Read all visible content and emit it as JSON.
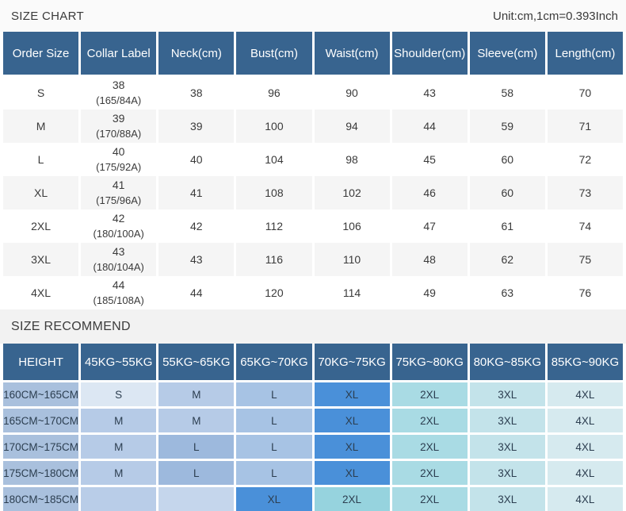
{
  "page": {
    "title": "SIZE CHART",
    "unit_note": "Unit:cm,1cm=0.393Inch",
    "recommend_title": "SIZE RECOMMEND"
  },
  "colors": {
    "header_bg": "#38648f",
    "accent_bright_blue": "#4a90d9",
    "row_alt_bg": "#f5f5f5",
    "height_col_bg": "#a9c0dd"
  },
  "size_chart": {
    "columns": [
      "Order Size",
      "Collar Label",
      "Neck(cm)",
      "Bust(cm)",
      "Waist(cm)",
      "Shoulder(cm)",
      "Sleeve(cm)",
      "Length(cm)"
    ],
    "rows": [
      {
        "order_size": "S",
        "collar_label": "38",
        "collar_sub": "(165/84A)",
        "neck": "38",
        "bust": "96",
        "waist": "90",
        "shoulder": "43",
        "sleeve": "58",
        "length": "70"
      },
      {
        "order_size": "M",
        "collar_label": "39",
        "collar_sub": "(170/88A)",
        "neck": "39",
        "bust": "100",
        "waist": "94",
        "shoulder": "44",
        "sleeve": "59",
        "length": "71"
      },
      {
        "order_size": "L",
        "collar_label": "40",
        "collar_sub": "(175/92A)",
        "neck": "40",
        "bust": "104",
        "waist": "98",
        "shoulder": "45",
        "sleeve": "60",
        "length": "72"
      },
      {
        "order_size": "XL",
        "collar_label": "41",
        "collar_sub": "(175/96A)",
        "neck": "41",
        "bust": "108",
        "waist": "102",
        "shoulder": "46",
        "sleeve": "60",
        "length": "73"
      },
      {
        "order_size": "2XL",
        "collar_label": "42",
        "collar_sub": "(180/100A)",
        "neck": "42",
        "bust": "112",
        "waist": "106",
        "shoulder": "47",
        "sleeve": "61",
        "length": "74"
      },
      {
        "order_size": "3XL",
        "collar_label": "43",
        "collar_sub": "(180/104A)",
        "neck": "43",
        "bust": "116",
        "waist": "110",
        "shoulder": "48",
        "sleeve": "62",
        "length": "75"
      },
      {
        "order_size": "4XL",
        "collar_label": "44",
        "collar_sub": "(185/108A)",
        "neck": "44",
        "bust": "120",
        "waist": "114",
        "shoulder": "49",
        "sleeve": "63",
        "length": "76"
      }
    ]
  },
  "size_recommend": {
    "columns": [
      "HEIGHT",
      "45KG~55KG",
      "55KG~65KG",
      "65KG~70KG",
      "70KG~75KG",
      "75KG~80KG",
      "80KG~85KG",
      "85KG~90KG"
    ],
    "rows": [
      {
        "height": "160CM~165CM",
        "cells": [
          {
            "label": "S",
            "bg": "#dce7f3"
          },
          {
            "label": "M",
            "bg": "#b6cbe7"
          },
          {
            "label": "L",
            "bg": "#a7c3e4"
          },
          {
            "label": "XL",
            "bg": "#4a90d9"
          },
          {
            "label": "2XL",
            "bg": "#a9dbe4"
          },
          {
            "label": "3XL",
            "bg": "#c3e3ea"
          },
          {
            "label": "4XL",
            "bg": "#d6eaef"
          }
        ]
      },
      {
        "height": "165CM~170CM",
        "cells": [
          {
            "label": "M",
            "bg": "#b6cbe7"
          },
          {
            "label": "M",
            "bg": "#b6cbe7"
          },
          {
            "label": "L",
            "bg": "#a7c3e4"
          },
          {
            "label": "XL",
            "bg": "#4a90d9"
          },
          {
            "label": "2XL",
            "bg": "#a9dbe4"
          },
          {
            "label": "3XL",
            "bg": "#c3e3ea"
          },
          {
            "label": "4XL",
            "bg": "#d6eaef"
          }
        ]
      },
      {
        "height": "170CM~175CM",
        "cells": [
          {
            "label": "M",
            "bg": "#b6cbe7"
          },
          {
            "label": "L",
            "bg": "#9db9dd"
          },
          {
            "label": "L",
            "bg": "#a7c3e4"
          },
          {
            "label": "XL",
            "bg": "#4a90d9"
          },
          {
            "label": "2XL",
            "bg": "#a9dbe4"
          },
          {
            "label": "3XL",
            "bg": "#c3e3ea"
          },
          {
            "label": "4XL",
            "bg": "#d6eaef"
          }
        ]
      },
      {
        "height": "175CM~180CM",
        "cells": [
          {
            "label": "M",
            "bg": "#b6cbe7"
          },
          {
            "label": "L",
            "bg": "#9db9dd"
          },
          {
            "label": "L",
            "bg": "#a7c3e4"
          },
          {
            "label": "XL",
            "bg": "#4a90d9"
          },
          {
            "label": "2XL",
            "bg": "#a9dbe4"
          },
          {
            "label": "3XL",
            "bg": "#c3e3ea"
          },
          {
            "label": "4XL",
            "bg": "#d6eaef"
          }
        ]
      },
      {
        "height": "180CM~185CM",
        "cells": [
          {
            "label": "",
            "bg": "#b9cde8"
          },
          {
            "label": "",
            "bg": "#c5d6ec"
          },
          {
            "label": "XL",
            "bg": "#4a90d9"
          },
          {
            "label": "2XL",
            "bg": "#96d3de"
          },
          {
            "label": "2XL",
            "bg": "#a9dbe4"
          },
          {
            "label": "3XL",
            "bg": "#c3e3ea"
          },
          {
            "label": "4XL",
            "bg": "#d6eaef"
          }
        ]
      }
    ]
  }
}
